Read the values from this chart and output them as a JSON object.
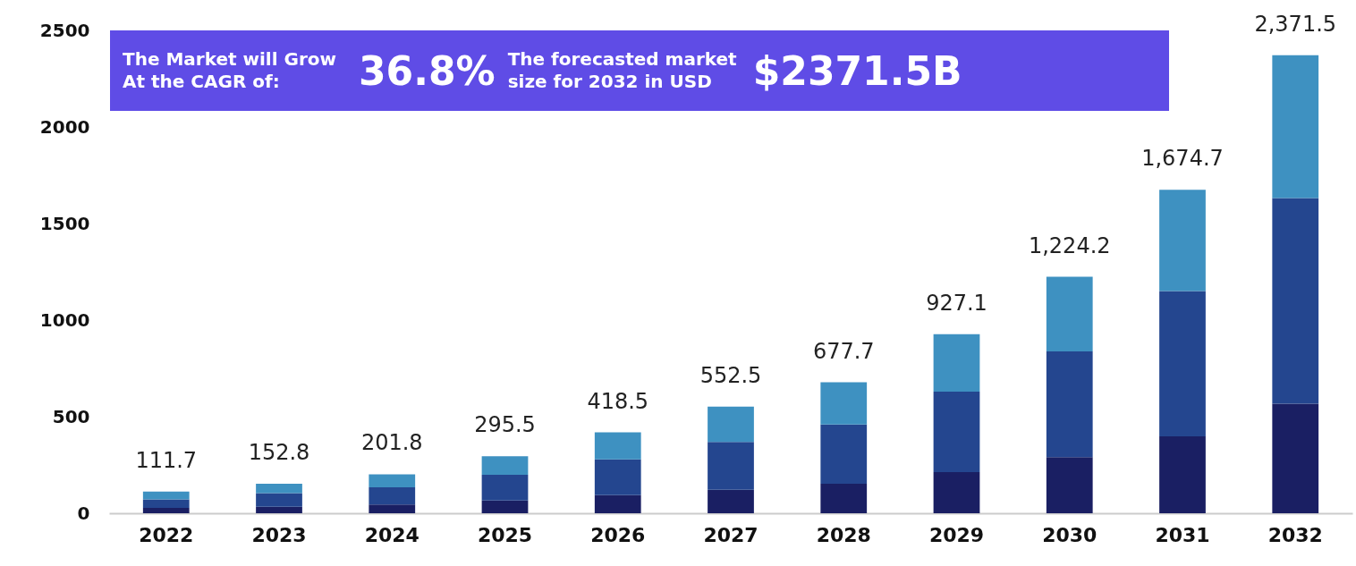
{
  "chart_data": {
    "type": "bar",
    "stacked": true,
    "categories": [
      "2022",
      "2023",
      "2024",
      "2025",
      "2026",
      "2027",
      "2028",
      "2029",
      "2030",
      "2031",
      "2032"
    ],
    "series": [
      {
        "color": "#1a1f63",
        "values": [
          28,
          34,
          45,
          66,
          94,
          122,
          153,
          213,
          291,
          398,
          567
        ]
      },
      {
        "color": "#24468f",
        "values": [
          44,
          70,
          89,
          133,
          185,
          247,
          307,
          417,
          547,
          752,
          1065
        ]
      },
      {
        "color": "#3e91c1",
        "values": [
          39.7,
          48.8,
          67.8,
          96.5,
          139.5,
          183.5,
          217.7,
          297.1,
          386.2,
          524.7,
          739.5
        ]
      }
    ],
    "totals": [
      "111.7",
      "152.8",
      "201.8",
      "295.5",
      "418.5",
      "552.5",
      "677.7",
      "927.1",
      "1,224.2",
      "1,674.7",
      "2,371.5"
    ],
    "ylim": [
      0,
      2500
    ],
    "yticks": [
      0,
      500,
      1000,
      1500,
      2000,
      2500
    ],
    "grid": false,
    "annotations": [
      "The Market will Grow At the CAGR of:",
      "36.8%",
      "The forecasted market size for 2032 in USD",
      "$2371.5B"
    ]
  }
}
